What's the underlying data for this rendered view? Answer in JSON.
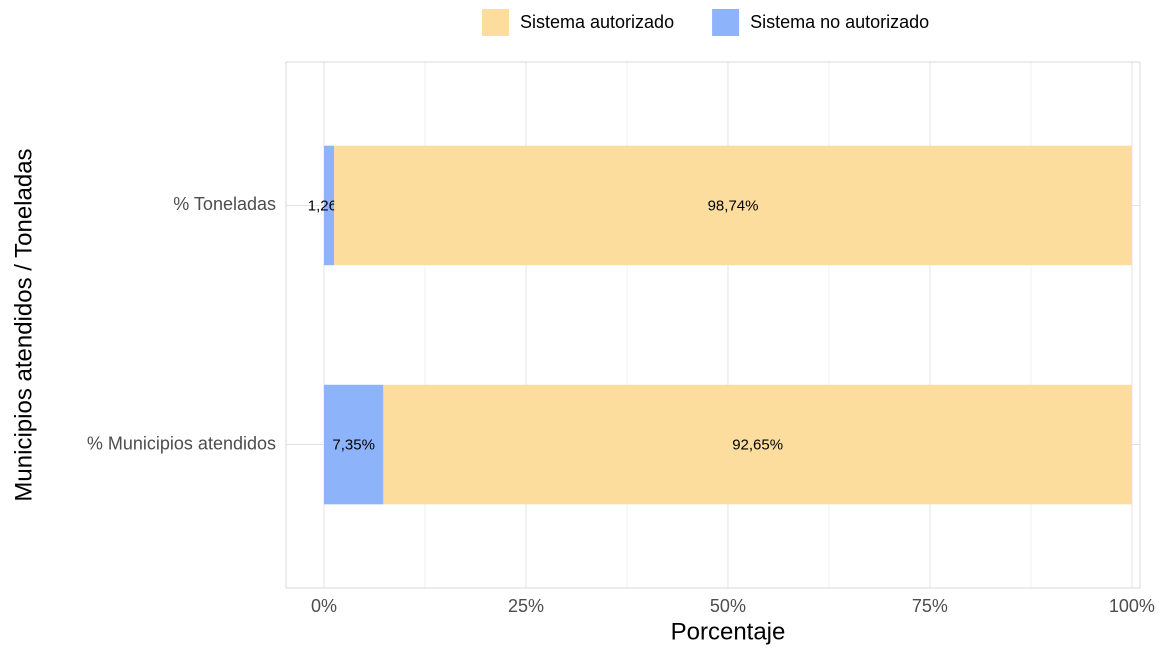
{
  "chart_data": {
    "type": "stacked_barh",
    "x_label": "Porcentaje",
    "y_label": "Municipios atendidos / Toneladas",
    "categories": [
      "% Toneladas",
      "% Municipios atendidos"
    ],
    "series": [
      {
        "name": "Sistema autorizado",
        "color": "#fcdd9d",
        "values": [
          98.74,
          92.65
        ],
        "value_labels": [
          "98,74%",
          "92,65%"
        ]
      },
      {
        "name": "Sistema no autorizado",
        "color": "#8db3fa",
        "values": [
          1.26,
          7.35
        ],
        "value_labels": [
          "1,26%",
          "7,35%"
        ]
      }
    ],
    "xlim": [
      -4.7,
      101
    ],
    "xticks": [
      {
        "value": 0,
        "label": "0%"
      },
      {
        "value": 25,
        "label": "25%"
      },
      {
        "value": 50,
        "label": "50%"
      },
      {
        "value": 75,
        "label": "75%"
      },
      {
        "value": 100,
        "label": "100%"
      }
    ],
    "xminor_ticks": [
      12.5,
      37.5,
      62.5,
      87.5
    ],
    "grid": true,
    "legend": "top"
  }
}
